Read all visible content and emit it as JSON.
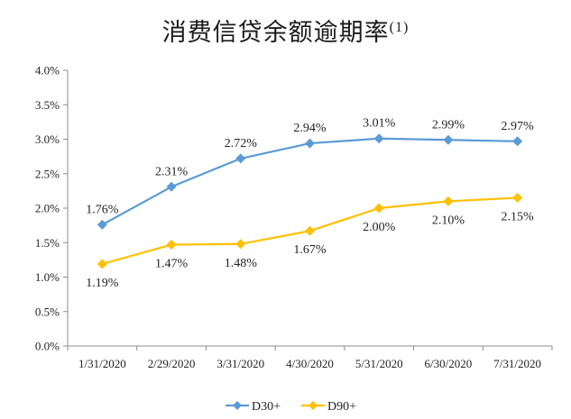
{
  "chart_data": {
    "type": "line",
    "title": "消费信贷余额逾期率",
    "title_sup": "(1)",
    "categories": [
      "1/31/2020",
      "2/29/2020",
      "3/31/2020",
      "4/30/2020",
      "5/31/2020",
      "6/30/2020",
      "7/31/2020"
    ],
    "ylim": [
      0,
      4.0
    ],
    "yticks": [
      "0.0%",
      "0.5%",
      "1.0%",
      "1.5%",
      "2.0%",
      "2.5%",
      "3.0%",
      "3.5%",
      "4.0%"
    ],
    "grid": false,
    "legend_position": "bottom-center",
    "series": [
      {
        "name": "D30+",
        "color": "#5b9bd5",
        "values": [
          1.76,
          2.31,
          2.72,
          2.94,
          3.01,
          2.99,
          2.97
        ],
        "labels": [
          "1.76%",
          "2.31%",
          "2.72%",
          "2.94%",
          "3.01%",
          "2.99%",
          "2.97%"
        ],
        "label_position": "above"
      },
      {
        "name": "D90+",
        "color": "#ffc000",
        "values": [
          1.19,
          1.47,
          1.48,
          1.67,
          2.0,
          2.1,
          2.15
        ],
        "labels": [
          "1.19%",
          "1.47%",
          "1.48%",
          "1.67%",
          "2.00%",
          "2.10%",
          "2.15%"
        ],
        "label_position": "below"
      }
    ]
  }
}
